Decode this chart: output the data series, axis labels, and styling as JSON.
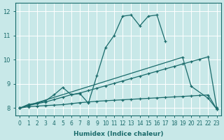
{
  "xlabel": "Humidex (Indice chaleur)",
  "bg_color": "#c8e8e8",
  "line_color": "#1a6b6b",
  "grid_color": "#ffffff",
  "xlim": [
    -0.5,
    23.5
  ],
  "ylim": [
    7.7,
    12.35
  ],
  "xticks": [
    0,
    1,
    2,
    3,
    4,
    5,
    6,
    7,
    8,
    9,
    10,
    11,
    12,
    13,
    14,
    15,
    16,
    17,
    18,
    19,
    20,
    21,
    22,
    23
  ],
  "yticks": [
    8,
    9,
    10,
    11,
    12
  ],
  "line1_x": [
    0,
    1,
    2,
    3,
    4,
    5,
    6,
    7,
    8,
    9,
    10,
    11,
    12,
    13,
    14,
    15,
    16,
    17
  ],
  "line1_y": [
    8.0,
    8.15,
    8.2,
    8.3,
    8.55,
    8.85,
    8.55,
    8.6,
    8.2,
    9.35,
    10.5,
    11.0,
    11.8,
    11.85,
    11.4,
    11.8,
    11.85,
    10.75
  ],
  "line2_x": [
    0,
    1,
    2,
    3,
    4,
    5,
    6,
    7,
    8,
    9,
    10,
    11,
    12,
    13,
    14,
    15,
    16,
    17,
    18,
    19,
    20,
    21,
    22,
    23
  ],
  "line2_y": [
    8.0,
    8.1,
    8.18,
    8.25,
    8.35,
    8.45,
    8.55,
    8.62,
    8.72,
    8.82,
    8.92,
    9.02,
    9.12,
    9.22,
    9.32,
    9.42,
    9.52,
    9.62,
    9.72,
    9.82,
    9.92,
    10.02,
    10.12,
    8.0
  ],
  "line3_x": [
    0,
    1,
    2,
    3,
    4,
    5,
    6,
    7,
    8,
    9,
    10,
    11,
    12,
    13,
    14,
    15,
    16,
    17,
    18,
    19,
    20,
    21,
    22,
    23
  ],
  "line3_y": [
    8.0,
    8.05,
    8.08,
    8.1,
    8.12,
    8.14,
    8.18,
    8.22,
    8.25,
    8.28,
    8.3,
    8.32,
    8.34,
    8.36,
    8.38,
    8.4,
    8.42,
    8.44,
    8.46,
    8.48,
    8.5,
    8.52,
    8.54,
    7.95
  ],
  "line4_x": [
    0,
    19,
    20,
    22,
    23
  ],
  "line4_y": [
    8.0,
    10.1,
    8.9,
    8.4,
    7.95
  ]
}
